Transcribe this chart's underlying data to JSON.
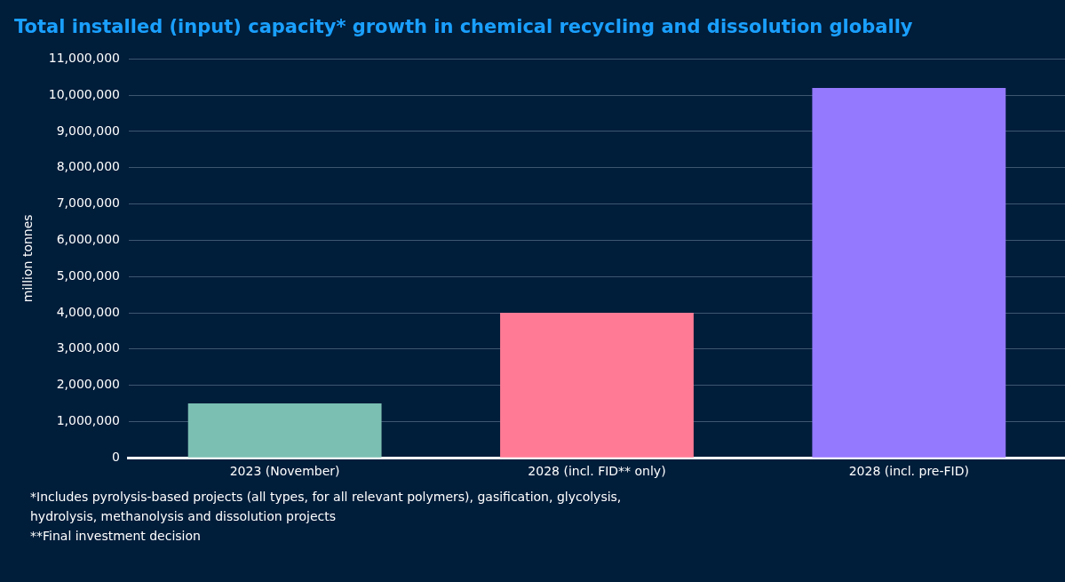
{
  "chart_data": {
    "type": "bar",
    "title": "Total installed (input) capacity* growth in chemical recycling and dissolution globally",
    "ylabel": "million tonnes",
    "categories": [
      "2023 (November)",
      "2028 (incl. FID** only)",
      "2028 (incl. pre-FID)"
    ],
    "values": [
      1500000,
      4000000,
      10200000
    ],
    "colors": [
      "#7bbfb3",
      "#ff7b95",
      "#9479ff"
    ],
    "ylim": [
      0,
      11000000
    ],
    "yticks": [
      0,
      {
        "value": 1000000,
        "label": "1,000,000"
      },
      {
        "value": 2000000,
        "label": "2,000,000"
      },
      {
        "value": 3000000,
        "label": "3,000,000"
      },
      {
        "value": 4000000,
        "label": "4,000,000"
      },
      {
        "value": 5000000,
        "label": "5,000,000"
      },
      {
        "value": 6000000,
        "label": "6,000,000"
      },
      {
        "value": 7000000,
        "label": "7,000,000"
      },
      {
        "value": 8000000,
        "label": "8,000,000"
      },
      {
        "value": 9000000,
        "label": "9,000,000"
      },
      {
        "value": 10000000,
        "label": "10,000,000"
      },
      {
        "value": 11000000,
        "label": "11,000,000"
      }
    ],
    "grid": "y",
    "legend": false,
    "annotations": [
      "*Includes pyrolysis-based projects (all types, for all relevant polymers), gasification, glycolysis, hydrolysis, methanolysis and dissolution projects",
      "**Final investment decision"
    ]
  }
}
